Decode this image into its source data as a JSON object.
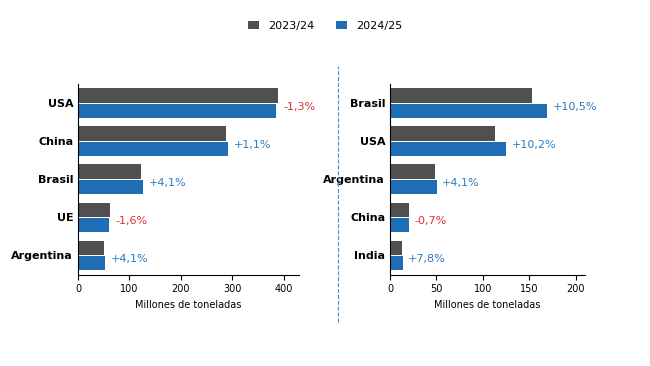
{
  "chart_data": [
    {
      "type": "bar",
      "orientation": "horizontal",
      "legend": "upper center",
      "categories": [
        "USA",
        "China",
        "Brasil",
        "UE",
        "Argentina"
      ],
      "series": [
        {
          "name": "2023/24",
          "color": "#505050",
          "values": [
            389.7,
            288.8,
            122.0,
            61.9,
            51.0
          ]
        },
        {
          "name": "2024/25",
          "color": "#1f6db5",
          "values": [
            384.6,
            292.0,
            127.0,
            60.9,
            53.1
          ]
        }
      ],
      "annotations": [
        "-1,3%",
        "+1,1%",
        "+4,1%",
        "-1,6%",
        "+4,1%"
      ],
      "xlabel": "Millones de toneladas",
      "xlim": [
        0,
        430
      ],
      "xticks": [
        0,
        100,
        200,
        300,
        400
      ]
    },
    {
      "type": "bar",
      "orientation": "horizontal",
      "categories": [
        "Brasil",
        "USA",
        "Argentina",
        "China",
        "India"
      ],
      "series": [
        {
          "name": "2023/24",
          "color": "#505050",
          "values": [
            153.0,
            113.3,
            48.2,
            20.8,
            12.5
          ]
        },
        {
          "name": "2024/25",
          "color": "#1f6db5",
          "values": [
            169.0,
            124.8,
            50.2,
            20.7,
            13.5
          ]
        }
      ],
      "annotations": [
        "+10,5%",
        "+10,2%",
        "+4,1%",
        "-0,7%",
        "+7,8%"
      ],
      "xlabel": "Millones de toneladas",
      "xlim": [
        0,
        210
      ],
      "xticks": [
        0,
        50,
        100,
        150,
        200
      ]
    }
  ]
}
